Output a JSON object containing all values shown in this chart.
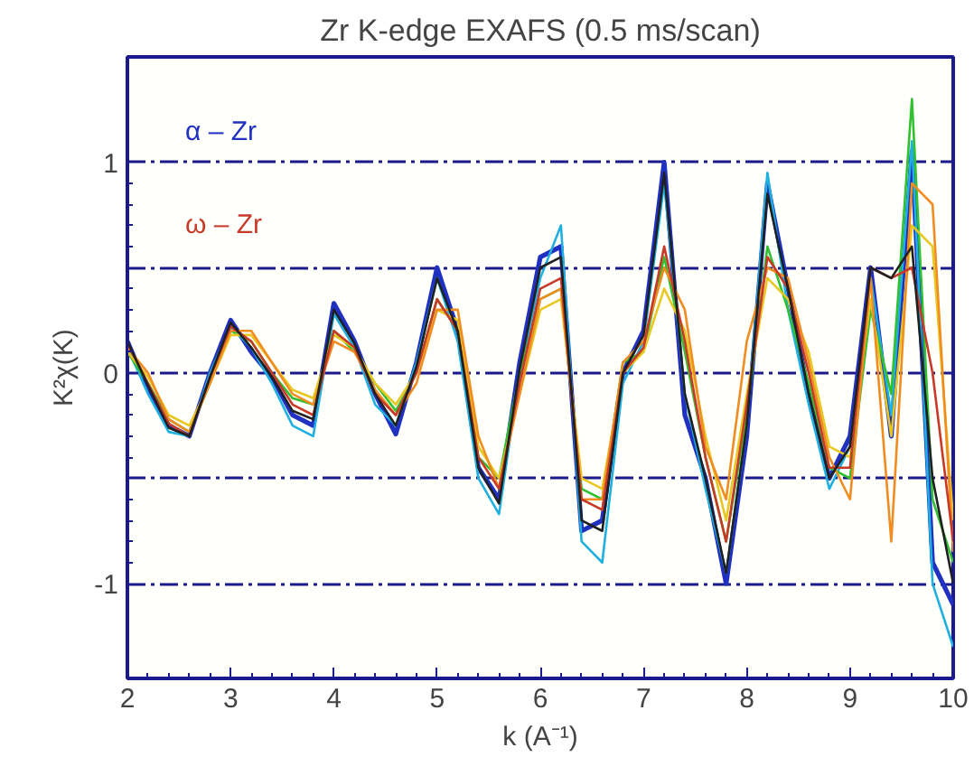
{
  "chart_data": {
    "type": "line",
    "title": "Zr K-edge EXAFS (0.5 ms/scan)",
    "xlabel": "k (A⁻¹)",
    "ylabel": "K²χ(K)",
    "x": [
      2.0,
      2.2,
      2.4,
      2.6,
      2.8,
      3.0,
      3.2,
      3.4,
      3.6,
      3.8,
      4.0,
      4.2,
      4.4,
      4.6,
      4.8,
      5.0,
      5.2,
      5.4,
      5.6,
      5.8,
      6.0,
      6.2,
      6.4,
      6.6,
      6.8,
      7.0,
      7.2,
      7.4,
      7.6,
      7.8,
      8.0,
      8.2,
      8.4,
      8.6,
      8.8,
      9.0,
      9.2,
      9.4,
      9.6,
      9.8,
      10.0
    ],
    "series": [
      {
        "name": "α – Zr",
        "color": "#2030c0",
        "values": [
          0.15,
          -0.08,
          -0.25,
          -0.3,
          0.0,
          0.25,
          0.1,
          -0.02,
          -0.2,
          -0.25,
          0.33,
          0.15,
          -0.1,
          -0.29,
          0.05,
          0.5,
          0.2,
          -0.45,
          -0.6,
          0.05,
          0.55,
          0.6,
          -0.75,
          -0.7,
          0.0,
          0.2,
          1.0,
          -0.2,
          -0.5,
          -1.0,
          -0.3,
          0.9,
          0.4,
          -0.1,
          -0.5,
          -0.3,
          0.5,
          -0.3,
          1.05,
          -0.9,
          -1.1
        ]
      },
      {
        "color": "#20b0e0",
        "values": [
          0.12,
          -0.1,
          -0.28,
          -0.3,
          0.0,
          0.22,
          0.12,
          -0.05,
          -0.25,
          -0.3,
          0.28,
          0.12,
          -0.15,
          -0.25,
          0.05,
          0.45,
          0.15,
          -0.5,
          -0.67,
          0.0,
          0.45,
          0.7,
          -0.8,
          -0.9,
          -0.05,
          0.15,
          0.9,
          -0.1,
          -0.55,
          -0.95,
          -0.25,
          0.95,
          0.3,
          -0.15,
          -0.55,
          -0.35,
          0.45,
          -0.2,
          1.1,
          -1.0,
          -1.3
        ]
      },
      {
        "color": "#30c030",
        "values": [
          0.1,
          -0.05,
          -0.22,
          -0.28,
          -0.05,
          0.2,
          0.15,
          0.0,
          -0.12,
          -0.15,
          0.2,
          0.1,
          -0.05,
          -0.18,
          0.0,
          0.35,
          0.2,
          -0.4,
          -0.5,
          0.0,
          0.35,
          0.4,
          -0.55,
          -0.6,
          0.05,
          0.1,
          0.55,
          0.1,
          -0.4,
          -0.8,
          -0.2,
          0.6,
          0.3,
          -0.05,
          -0.45,
          -0.5,
          0.3,
          -0.1,
          1.3,
          -0.6,
          -0.9
        ]
      },
      {
        "color": "#e8c820",
        "values": [
          0.1,
          -0.02,
          -0.2,
          -0.25,
          -0.05,
          0.18,
          0.18,
          0.05,
          -0.08,
          -0.12,
          0.18,
          0.12,
          -0.05,
          -0.15,
          0.0,
          0.3,
          0.25,
          -0.35,
          -0.5,
          -0.1,
          0.3,
          0.35,
          -0.5,
          -0.55,
          0.0,
          0.1,
          0.4,
          0.2,
          -0.3,
          -0.7,
          -0.1,
          0.45,
          0.35,
          0.1,
          -0.35,
          -0.4,
          0.35,
          -0.3,
          0.7,
          0.6,
          -0.7
        ]
      },
      {
        "color": "#f08c20",
        "values": [
          0.12,
          0.0,
          -0.22,
          -0.28,
          -0.05,
          0.2,
          0.2,
          0.05,
          -0.1,
          -0.15,
          0.15,
          0.1,
          -0.08,
          -0.2,
          -0.05,
          0.3,
          0.3,
          -0.3,
          -0.55,
          -0.1,
          0.35,
          0.4,
          -0.6,
          -0.6,
          0.05,
          0.15,
          0.5,
          0.3,
          -0.35,
          -0.6,
          0.15,
          0.5,
          0.45,
          0.05,
          -0.4,
          -0.6,
          0.45,
          -0.8,
          0.9,
          0.8,
          -0.85
        ]
      },
      {
        "name": "ω – Zr",
        "color": "#c83a28",
        "values": [
          0.14,
          -0.05,
          -0.24,
          -0.3,
          -0.02,
          0.22,
          0.15,
          0.0,
          -0.15,
          -0.2,
          0.2,
          0.12,
          -0.1,
          -0.2,
          0.0,
          0.35,
          0.2,
          -0.4,
          -0.55,
          -0.05,
          0.4,
          0.45,
          -0.6,
          -0.65,
          0.0,
          0.12,
          0.6,
          0.15,
          -0.4,
          -0.8,
          -0.15,
          0.55,
          0.4,
          0.0,
          -0.45,
          -0.45,
          0.5,
          0.45,
          0.5,
          0.0,
          -0.8
        ]
      },
      {
        "color": "#202020",
        "values": [
          0.15,
          -0.06,
          -0.26,
          -0.3,
          -0.02,
          0.24,
          0.12,
          -0.02,
          -0.18,
          -0.22,
          0.3,
          0.14,
          -0.1,
          -0.25,
          0.03,
          0.45,
          0.2,
          -0.45,
          -0.62,
          0.02,
          0.5,
          0.55,
          -0.7,
          -0.75,
          0.0,
          0.18,
          0.95,
          -0.1,
          -0.5,
          -0.95,
          -0.25,
          0.85,
          0.4,
          -0.1,
          -0.5,
          -0.35,
          0.5,
          0.45,
          0.6,
          -0.5,
          -1.0
        ]
      }
    ],
    "xlim": [
      2,
      10
    ],
    "ylim": [
      -1.45,
      1.5
    ],
    "xticks": [
      2,
      3,
      4,
      5,
      6,
      7,
      8,
      9,
      10
    ],
    "yticks": [
      -1,
      {
        "value": -0.5,
        "label": null
      },
      0,
      {
        "value": 0.5,
        "label": null
      },
      1
    ],
    "grid": "y",
    "legend": "top left",
    "line_style": "solid",
    "marker": "none"
  }
}
